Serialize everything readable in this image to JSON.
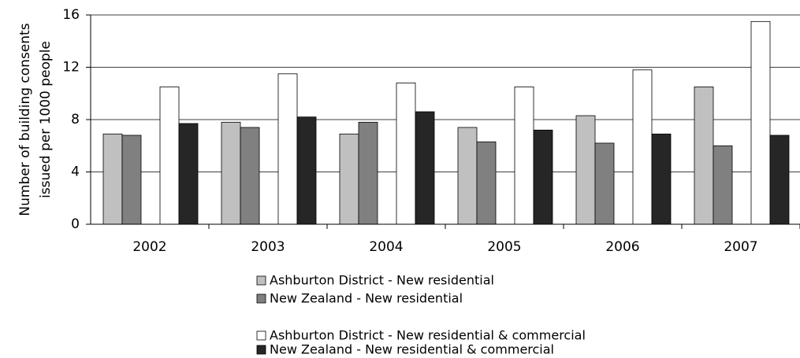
{
  "chart_data": {
    "type": "bar",
    "y_label": [
      "Number of building consents",
      "issued per 1000 people"
    ],
    "categories": [
      "2002",
      "2003",
      "2004",
      "2005",
      "2006",
      "2007"
    ],
    "series": [
      {
        "name": "Ashburton District - New residential",
        "color": "#c0c0c0",
        "values": [
          6.9,
          7.8,
          6.9,
          7.4,
          8.3,
          10.5
        ]
      },
      {
        "name": "New Zealand - New residential",
        "color": "#808080",
        "values": [
          6.8,
          7.4,
          7.8,
          6.3,
          6.2,
          6.0
        ]
      },
      {
        "name": "Ashburton District - New residential & commercial",
        "color": "#ffffff",
        "values": [
          10.5,
          11.5,
          10.8,
          10.5,
          11.8,
          15.5
        ]
      },
      {
        "name": "New Zealand - New residential & commercial",
        "color": "#262626",
        "values": [
          7.7,
          8.2,
          8.6,
          7.2,
          6.9,
          6.8
        ]
      }
    ],
    "ylim": [
      0,
      16
    ],
    "yticks": [
      0,
      4,
      8,
      12,
      16
    ],
    "grid": true
  }
}
